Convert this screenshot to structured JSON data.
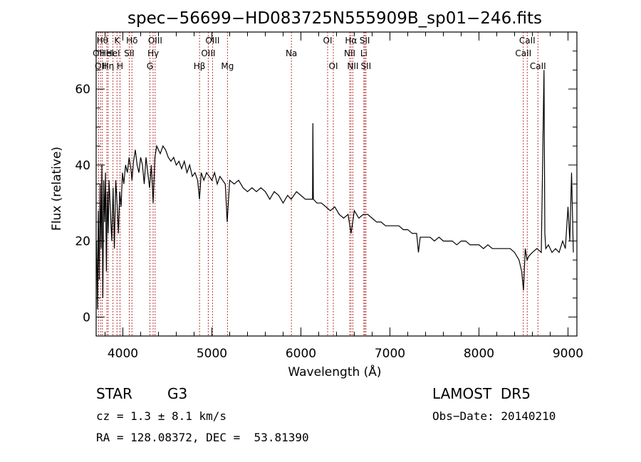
{
  "chart_data": {
    "type": "line",
    "title": "spec−56699−HD083725N555909B_sp01−246.fits",
    "xlabel": "Wavelength (Å)",
    "ylabel": "Flux (relative)",
    "xlim": [
      3700,
      9100
    ],
    "ylim": [
      -5,
      75
    ],
    "x_ticks": [
      4000,
      5000,
      6000,
      7000,
      8000,
      9000
    ],
    "y_ticks": [
      0,
      20,
      40,
      60
    ],
    "grid": false,
    "series": [
      {
        "x": [
          3705,
          3715,
          3725,
          3735,
          3745,
          3755,
          3765,
          3775,
          3785,
          3795,
          3805,
          3815,
          3825,
          3835,
          3845,
          3860,
          3875,
          3890,
          3905,
          3920,
          3935,
          3950,
          3965,
          3980,
          3995,
          4010,
          4030,
          4050,
          4070,
          4090,
          4102,
          4120,
          4140,
          4160,
          4180,
          4200,
          4220,
          4240,
          4260,
          4280,
          4300,
          4320,
          4340,
          4360,
          4380,
          4400,
          4420,
          4450,
          4480,
          4510,
          4540,
          4570,
          4600,
          4630,
          4660,
          4690,
          4720,
          4750,
          4780,
          4810,
          4840,
          4861,
          4880,
          4910,
          4940,
          4970,
          5000,
          5030,
          5060,
          5090,
          5120,
          5150,
          5172,
          5200,
          5250,
          5300,
          5350,
          5400,
          5450,
          5500,
          5550,
          5600,
          5650,
          5700,
          5750,
          5800,
          5850,
          5890,
          5950,
          6000,
          6050,
          6100,
          6130,
          6134,
          6140,
          6180,
          6230,
          6280,
          6330,
          6380,
          6430,
          6480,
          6530,
          6563,
          6600,
          6650,
          6700,
          6750,
          6800,
          6850,
          6900,
          6950,
          7000,
          7050,
          7100,
          7150,
          7200,
          7250,
          7300,
          7320,
          7340,
          7400,
          7450,
          7500,
          7550,
          7600,
          7650,
          7700,
          7750,
          7800,
          7850,
          7900,
          7950,
          8000,
          8050,
          8100,
          8150,
          8200,
          8250,
          8300,
          8350,
          8400,
          8450,
          8480,
          8500,
          8520,
          8540,
          8560,
          8600,
          8650,
          8700,
          8730,
          8740,
          8750,
          8780,
          8820,
          8860,
          8900,
          8940,
          8970,
          9000,
          9020,
          9040,
          9060
        ],
        "y": [
          20,
          2,
          28,
          10,
          35,
          18,
          40,
          5,
          36,
          25,
          38,
          12,
          33,
          22,
          36,
          28,
          20,
          34,
          18,
          36,
          30,
          22,
          33,
          29,
          38,
          35,
          40,
          38,
          42,
          39,
          36,
          41,
          44,
          40,
          38,
          42,
          40,
          35,
          42,
          38,
          34,
          40,
          30,
          42,
          45,
          44,
          43,
          45,
          44,
          42,
          41,
          42,
          40,
          41,
          39,
          41,
          38,
          40,
          37,
          38,
          36,
          31,
          38,
          36,
          38,
          37,
          36,
          38,
          35,
          37,
          36,
          35,
          25,
          36,
          35,
          36,
          34,
          33,
          34,
          33,
          34,
          33,
          31,
          33,
          32,
          30,
          32,
          31,
          33,
          32,
          31,
          31,
          31,
          51,
          31,
          30,
          30,
          29,
          28,
          29,
          27,
          26,
          27,
          22,
          28,
          26,
          27,
          27,
          26,
          25,
          25,
          24,
          24,
          24,
          24,
          23,
          23,
          22,
          22,
          17,
          21,
          21,
          21,
          20,
          21,
          20,
          20,
          20,
          19,
          20,
          20,
          19,
          19,
          19,
          18,
          19,
          18,
          18,
          18,
          18,
          18,
          17,
          15,
          12,
          7,
          18,
          15,
          16,
          17,
          18,
          17,
          65,
          22,
          18,
          19,
          17,
          18,
          17,
          20,
          18,
          29,
          20,
          38,
          17
        ]
      }
    ],
    "spectral_lines": [
      {
        "wl": 3727,
        "label": "OII",
        "row": 1
      },
      {
        "wl": 3750,
        "label": "OII",
        "row": 2
      },
      {
        "wl": 3770,
        "label": "Hθ",
        "row": 0
      },
      {
        "wl": 3820,
        "label": "HeI",
        "row": 1
      },
      {
        "wl": 3835,
        "label": "Hη",
        "row": 2
      },
      {
        "wl": 3889,
        "label": "HeI",
        "row": 1
      },
      {
        "wl": 3934,
        "label": "K",
        "row": 0
      },
      {
        "wl": 3968,
        "label": "H",
        "row": 2
      },
      {
        "wl": 4072,
        "label": "SII",
        "row": 1
      },
      {
        "wl": 4102,
        "label": "Hδ",
        "row": 0
      },
      {
        "wl": 4304,
        "label": "G",
        "row": 2
      },
      {
        "wl": 4340,
        "label": "Hγ",
        "row": 1
      },
      {
        "wl": 4363,
        "label": "OIII",
        "row": 0
      },
      {
        "wl": 4861,
        "label": "Hβ",
        "row": 2
      },
      {
        "wl": 4959,
        "label": "OIII",
        "row": 1
      },
      {
        "wl": 5007,
        "label": "OIII",
        "row": 0
      },
      {
        "wl": 5175,
        "label": "Mg",
        "row": 2
      },
      {
        "wl": 5893,
        "label": "Na",
        "row": 1
      },
      {
        "wl": 6300,
        "label": "OI",
        "row": 0
      },
      {
        "wl": 6364,
        "label": "OI",
        "row": 2
      },
      {
        "wl": 6548,
        "label": "NII",
        "row": 1
      },
      {
        "wl": 6563,
        "label": "Hα",
        "row": 0
      },
      {
        "wl": 6583,
        "label": "NII",
        "row": 2
      },
      {
        "wl": 6707,
        "label": "Li",
        "row": 1
      },
      {
        "wl": 6717,
        "label": "SII",
        "row": 0
      },
      {
        "wl": 6731,
        "label": "SII",
        "row": 2
      },
      {
        "wl": 8498,
        "label": "CaII",
        "row": 1
      },
      {
        "wl": 8542,
        "label": "CaII",
        "row": 0
      },
      {
        "wl": 8662,
        "label": "CaII",
        "row": 2
      }
    ]
  },
  "info": {
    "object_class": "STAR",
    "subclass": "G3",
    "survey": "LAMOST  DR5",
    "redshift": "cz = 1.3 ± 8.1 km/s",
    "obs_date": "Obs−Date: 20140210",
    "coords": "RA = 128.08372, DEC =  53.81390"
  },
  "colors": {
    "spectrum": "#000000",
    "line_markers": "#b22222",
    "axes": "#000000",
    "background": "#ffffff"
  }
}
